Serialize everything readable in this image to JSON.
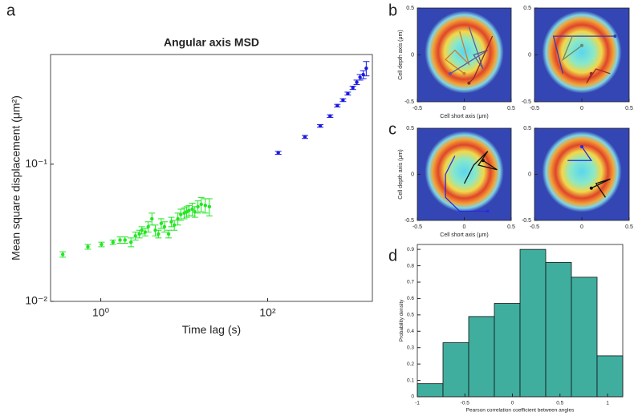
{
  "chart_data": [
    {
      "type": "errorscatter",
      "panel": "a",
      "title": "Angular axis MSD",
      "xlabel": "Time lag (s)",
      "ylabel": "Mean square displacement (μm²)",
      "xscale": "log",
      "yscale": "log",
      "xlim": [
        0.25,
        1800
      ],
      "ylim": [
        0.01,
        0.63
      ],
      "xticks": [
        {
          "value": 1,
          "label": "10⁰"
        },
        {
          "value": 100,
          "label": "10²"
        }
      ],
      "yticks": [
        {
          "value": 0.01,
          "label": "10⁻²"
        },
        {
          "value": 0.1,
          "label": "10⁻¹"
        }
      ],
      "series": [
        {
          "color": "#22e622",
          "x": [
            0.35,
            0.7,
            1.02,
            1.4,
            1.7,
            1.95,
            2.3,
            2.6,
            2.9,
            3.1,
            3.4,
            3.7,
            4.1,
            4.5,
            4.9,
            5.3,
            5.8,
            6.5,
            7.0,
            7.6,
            8.4,
            9.1,
            10,
            10.7,
            11.4,
            12.5,
            13.4,
            14.6,
            16,
            17.9,
            20
          ],
          "values": [
            0.022,
            0.025,
            0.026,
            0.027,
            0.028,
            0.028,
            0.027,
            0.03,
            0.031,
            0.033,
            0.032,
            0.035,
            0.04,
            0.033,
            0.031,
            0.037,
            0.035,
            0.031,
            0.038,
            0.036,
            0.04,
            0.043,
            0.044,
            0.045,
            0.046,
            0.047,
            0.045,
            0.049,
            0.051,
            0.05,
            0.049
          ],
          "errors": [
            0.001,
            0.001,
            0.001,
            0.001,
            0.0015,
            0.0015,
            0.002,
            0.002,
            0.002,
            0.002,
            0.002,
            0.003,
            0.004,
            0.003,
            0.002,
            0.003,
            0.003,
            0.002,
            0.003,
            0.003,
            0.004,
            0.004,
            0.004,
            0.004,
            0.004,
            0.005,
            0.004,
            0.005,
            0.006,
            0.006,
            0.007
          ]
        },
        {
          "color": "#1a1ae0",
          "x": [
            134,
            280,
            427,
            560,
            684,
            800,
            914,
            1050,
            1170,
            1280,
            1400,
            1520
          ],
          "values": [
            0.121,
            0.158,
            0.19,
            0.224,
            0.267,
            0.293,
            0.327,
            0.36,
            0.395,
            0.43,
            0.45,
            0.5
          ],
          "errors": [
            0.003,
            0.004,
            0.004,
            0.005,
            0.006,
            0.007,
            0.008,
            0.01,
            0.015,
            0.02,
            0.03,
            0.06
          ]
        }
      ]
    },
    {
      "type": "heatmap",
      "panel": "b",
      "xlabel": "Cell short axis (μm)",
      "ylabel": "Cell depth axis (μm)",
      "xlim": [
        -0.5,
        0.5
      ],
      "ylim": [
        -0.5,
        0.5
      ],
      "xticks": [
        -0.5,
        0,
        0.5
      ],
      "yticks": [
        -0.5,
        0,
        0.5
      ]
    },
    {
      "type": "heatmap",
      "xlim": [
        -0.5,
        0.5
      ],
      "ylim": [
        -0.5,
        0.5
      ],
      "xticks": [
        -0.5,
        0,
        0.5
      ],
      "yticks": [
        -0.5,
        0,
        0.5
      ]
    },
    {
      "type": "heatmap",
      "panel": "c",
      "xlabel": "Cell short axis (μm)",
      "ylabel": "Cell depth axis (μm)",
      "xlim": [
        -0.5,
        0.5
      ],
      "ylim": [
        -0.5,
        0.5
      ],
      "xticks": [
        -0.5,
        0,
        0.5
      ],
      "yticks": [
        -0.5,
        0,
        0.5
      ]
    },
    {
      "type": "heatmap",
      "xlim": [
        -0.5,
        0.5
      ],
      "ylim": [
        -0.5,
        0.5
      ],
      "xticks": [
        -0.5,
        0,
        0.5
      ],
      "yticks": [
        -0.5,
        0,
        0.5
      ]
    },
    {
      "type": "histogram",
      "panel": "d",
      "xlabel": "Pearson correlation coefficient between angles",
      "ylabel": "Probability density",
      "color": "#3fae9f",
      "bins": [
        -1,
        -0.73,
        -0.46,
        -0.19,
        0.08,
        0.35,
        0.62,
        0.89,
        1.16
      ],
      "values": [
        0.08,
        0.33,
        0.49,
        0.57,
        0.9,
        0.82,
        0.73,
        0.25
      ],
      "xlim": [
        -1,
        1.16
      ],
      "ylim": [
        0,
        0.93
      ],
      "xticks": [
        -1,
        -0.5,
        0,
        0.5,
        1
      ],
      "yticks": [
        0,
        0.1,
        0.2,
        0.3,
        0.4,
        0.5,
        0.6,
        0.7,
        0.8,
        0.9
      ]
    }
  ]
}
